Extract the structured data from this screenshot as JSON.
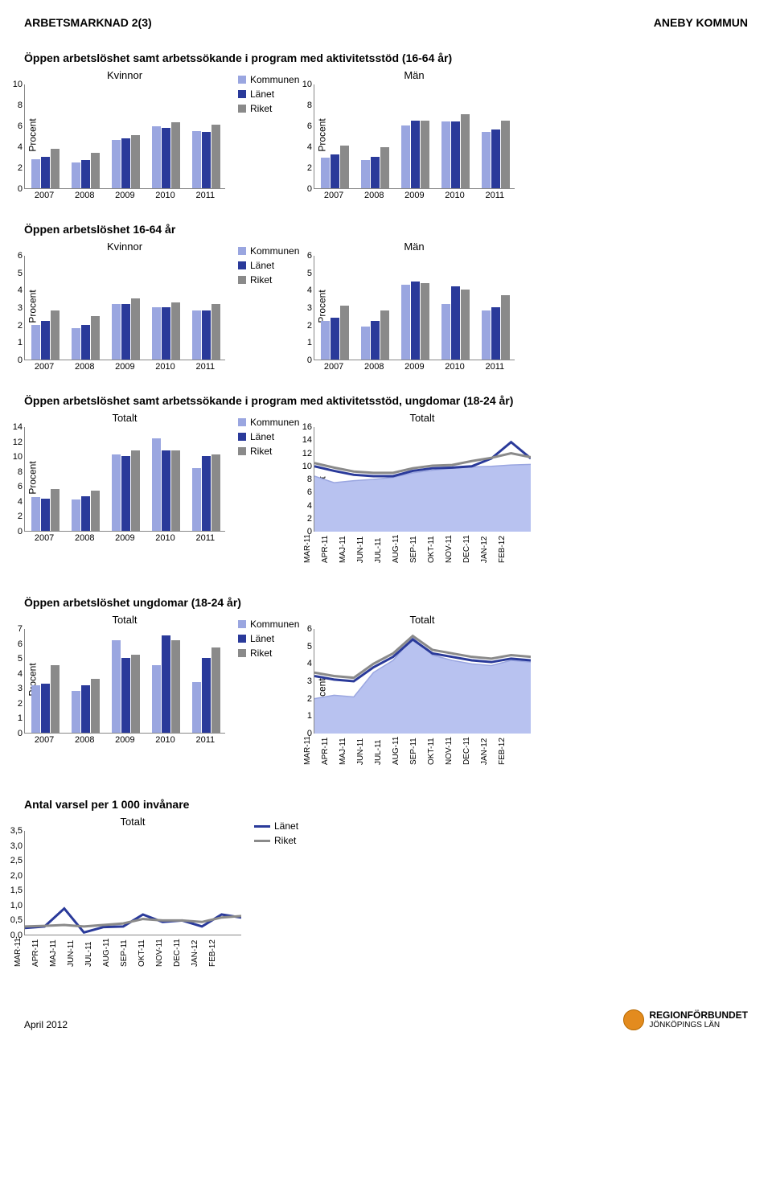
{
  "header": {
    "left": "ARBETSMARKNAD 2(3)",
    "right": "ANEBY KOMMUN"
  },
  "colors": {
    "kommunen": "#9aa6e0",
    "lanet": "#2a3a9a",
    "riket": "#8a8a8a",
    "axis": "#888888",
    "area": "#b8c2f0",
    "l_line": "#2a3a9a",
    "r_line": "#8a8a8a"
  },
  "legend3": {
    "a": "Kommunen",
    "b": "Länet",
    "c": "Riket"
  },
  "legend2": {
    "a": "Länet",
    "b": "Riket"
  },
  "sec1": {
    "title": "Öppen arbetslöshet samt arbetssökande i program med aktivitetsstöd (16-64 år)",
    "ylabel": "Procent",
    "left": {
      "title": "Kvinnor",
      "ymax": 10,
      "yticks": [
        0,
        2,
        4,
        6,
        8,
        10
      ],
      "cats": [
        "2007",
        "2008",
        "2009",
        "2010",
        "2011"
      ],
      "k": [
        2.8,
        2.5,
        4.6,
        5.9,
        5.5
      ],
      "l": [
        3.0,
        2.7,
        4.8,
        5.8,
        5.4
      ],
      "r": [
        3.8,
        3.4,
        5.1,
        6.3,
        6.1
      ]
    },
    "right": {
      "title": "Män",
      "ymax": 10,
      "yticks": [
        0,
        2,
        4,
        6,
        8,
        10
      ],
      "cats": [
        "2007",
        "2008",
        "2009",
        "2010",
        "2011"
      ],
      "k": [
        2.9,
        2.7,
        6.0,
        6.4,
        5.4
      ],
      "l": [
        3.2,
        3.0,
        6.5,
        6.4,
        5.6
      ],
      "r": [
        4.1,
        3.9,
        6.5,
        7.1,
        6.5
      ]
    }
  },
  "sec2": {
    "title": "Öppen arbetslöshet 16-64 år",
    "ylabel": "Procent",
    "left": {
      "title": "Kvinnor",
      "ymax": 6,
      "yticks": [
        0,
        1,
        2,
        3,
        4,
        5,
        6
      ],
      "cats": [
        "2007",
        "2008",
        "2009",
        "2010",
        "2011"
      ],
      "k": [
        2.0,
        1.8,
        3.2,
        3.0,
        2.8
      ],
      "l": [
        2.2,
        2.0,
        3.2,
        3.0,
        2.8
      ],
      "r": [
        2.8,
        2.5,
        3.5,
        3.3,
        3.2
      ]
    },
    "right": {
      "title": "Män",
      "ymax": 6,
      "yticks": [
        0,
        1,
        2,
        3,
        4,
        5,
        6
      ],
      "cats": [
        "2007",
        "2008",
        "2009",
        "2010",
        "2011"
      ],
      "k": [
        2.2,
        1.9,
        4.3,
        3.2,
        2.8
      ],
      "l": [
        2.4,
        2.2,
        4.5,
        4.2,
        3.0
      ],
      "r": [
        3.1,
        2.8,
        4.4,
        4.0,
        3.7
      ]
    }
  },
  "sec3": {
    "title": "Öppen arbetslöshet samt arbetssökande i program med aktivitetsstöd, ungdomar (18-24 år)",
    "ylabel": "Procent",
    "bar": {
      "title": "Totalt",
      "ymax": 14,
      "yticks": [
        0,
        2,
        4,
        6,
        8,
        10,
        12,
        14
      ],
      "cats": [
        "2007",
        "2008",
        "2009",
        "2010",
        "2011"
      ],
      "k": [
        4.5,
        4.2,
        10.2,
        12.4,
        8.4
      ],
      "l": [
        4.3,
        4.6,
        10.0,
        10.8,
        10.0
      ],
      "r": [
        5.6,
        5.4,
        10.8,
        10.8,
        10.2
      ]
    },
    "line": {
      "title": "Totalt",
      "ymax": 16,
      "yticks": [
        0,
        2,
        4,
        6,
        8,
        10,
        12,
        14,
        16
      ],
      "cats": [
        "MAR-11",
        "APR-11",
        "MAJ-11",
        "JUN-11",
        "JUL-11",
        "AUG-11",
        "SEP-11",
        "OKT-11",
        "NOV-11",
        "DEC-11",
        "JAN-12",
        "FEB-12"
      ],
      "k": [
        8.5,
        7.5,
        7.8,
        8.0,
        8.3,
        9.0,
        9.4,
        9.7,
        9.9,
        10.0,
        10.2,
        10.3
      ],
      "l": [
        10.0,
        9.3,
        8.7,
        8.5,
        8.5,
        9.3,
        9.7,
        9.8,
        10.0,
        11.2,
        13.7,
        11.2
      ],
      "r": [
        10.5,
        9.8,
        9.2,
        9.0,
        9.0,
        9.7,
        10.1,
        10.2,
        10.8,
        11.3,
        12.0,
        11.4
      ]
    }
  },
  "sec4": {
    "title": "Öppen arbetslöshet ungdomar (18-24 år)",
    "ylabel": "Procent",
    "bar": {
      "title": "Totalt",
      "ymax": 7,
      "yticks": [
        0,
        1,
        2,
        3,
        4,
        5,
        6,
        7
      ],
      "cats": [
        "2007",
        "2008",
        "2009",
        "2010",
        "2011"
      ],
      "k": [
        3.2,
        2.8,
        6.2,
        4.5,
        3.4
      ],
      "l": [
        3.3,
        3.2,
        5.0,
        6.5,
        5.0
      ],
      "r": [
        4.5,
        3.6,
        5.2,
        6.2,
        5.7
      ]
    },
    "line": {
      "title": "Totalt",
      "ymax": 6,
      "yticks": [
        0,
        1,
        2,
        3,
        4,
        5,
        6
      ],
      "cats": [
        "MAR-11",
        "APR-11",
        "MAJ-11",
        "JUN-11",
        "JUL-11",
        "AUG-11",
        "SEP-11",
        "OKT-11",
        "NOV-11",
        "DEC-11",
        "JAN-12",
        "FEB-12"
      ],
      "k": [
        2.0,
        2.2,
        2.1,
        3.5,
        4.2,
        5.5,
        4.5,
        4.2,
        4.0,
        3.9,
        4.2,
        4.1
      ],
      "l": [
        3.3,
        3.1,
        3.0,
        3.8,
        4.4,
        5.4,
        4.6,
        4.4,
        4.2,
        4.1,
        4.3,
        4.2
      ],
      "r": [
        3.5,
        3.3,
        3.2,
        4.0,
        4.6,
        5.6,
        4.8,
        4.6,
        4.4,
        4.3,
        4.5,
        4.4
      ]
    }
  },
  "sec5": {
    "title": "Antal varsel per 1 000 invånare",
    "line": {
      "title": "Totalt",
      "ymax": 3.5,
      "yticks": [
        "0,0",
        "0,5",
        "1,0",
        "1,5",
        "2,0",
        "2,5",
        "3,0",
        "3,5"
      ],
      "cats": [
        "MAR-11",
        "APR-11",
        "MAJ-11",
        "JUN-11",
        "JUL-11",
        "AUG-11",
        "SEP-11",
        "OKT-11",
        "NOV-11",
        "DEC-11",
        "JAN-12",
        "FEB-12"
      ],
      "l": [
        0.25,
        0.3,
        0.9,
        0.1,
        0.28,
        0.3,
        0.7,
        0.45,
        0.5,
        0.3,
        0.7,
        0.6
      ],
      "r": [
        0.3,
        0.32,
        0.35,
        0.3,
        0.35,
        0.4,
        0.55,
        0.5,
        0.5,
        0.45,
        0.6,
        0.65
      ]
    }
  },
  "footer": {
    "date": "April 2012",
    "org1": "REGIONFÖRBUNDET",
    "org2": "JÖNKÖPINGS LÄN"
  }
}
